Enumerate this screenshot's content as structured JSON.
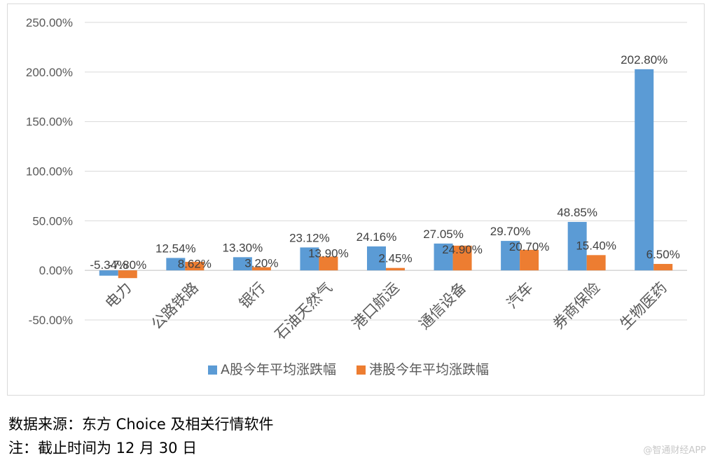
{
  "chart_data": {
    "type": "bar",
    "categories": [
      "电力",
      "公路铁路",
      "银行",
      "石油天然气",
      "港口航运",
      "通信设备",
      "汽车",
      "券商保险",
      "生物医药"
    ],
    "series": [
      {
        "name": "A股今年平均涨跌幅",
        "color": "#5B9BD5",
        "values": [
          -5.34,
          12.54,
          13.3,
          23.12,
          24.16,
          27.05,
          29.7,
          48.85,
          202.8
        ],
        "labels": [
          "-5.34%",
          "12.54%",
          "13.30%",
          "23.12%",
          "24.16%",
          "27.05%",
          "29.70%",
          "48.85%",
          "202.80%"
        ]
      },
      {
        "name": "港股今年平均涨跌幅",
        "color": "#ED7D31",
        "values": [
          -7.8,
          8.62,
          3.2,
          13.9,
          2.45,
          24.9,
          20.7,
          15.4,
          6.5
        ],
        "labels": [
          "-7.80%",
          "8.62%",
          "3.20%",
          "13.90%",
          "2.45%",
          "24.90%",
          "20.70%",
          "15.40%",
          "6.50%"
        ]
      }
    ],
    "yticks": [
      "250.00%",
      "200.00%",
      "150.00%",
      "100.00%",
      "50.00%",
      "0.00%",
      "-50.00%"
    ],
    "ylim": [
      -50,
      250
    ],
    "grid": true,
    "legend_position": "bottom"
  },
  "notes": {
    "source": "数据来源：东方 Choice 及相关行情软件",
    "remark": "注：截止时间为 12 月 30 日"
  },
  "watermark": "@智通财经APP"
}
